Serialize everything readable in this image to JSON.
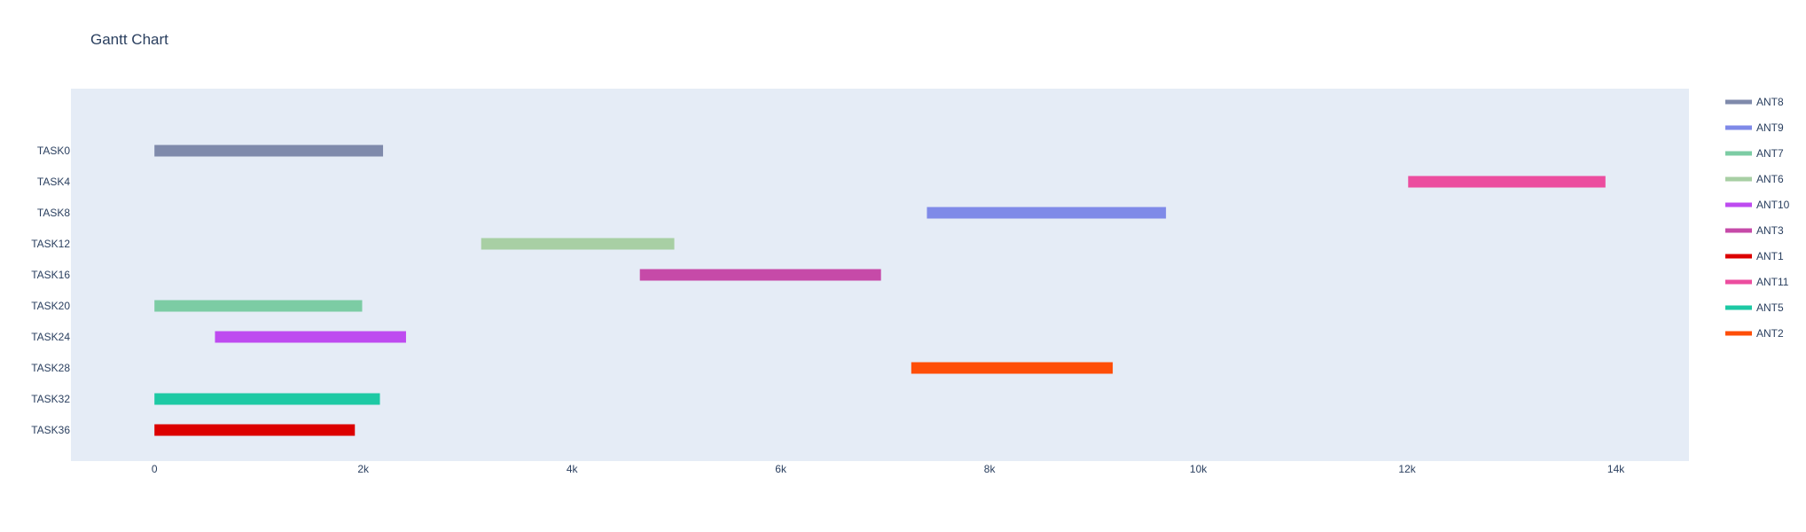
{
  "chart_data": {
    "type": "gantt",
    "title": "Gantt Chart",
    "xlabel": "",
    "ylabel": "",
    "xlim": [
      -800,
      14700
    ],
    "x_ticks": [
      0,
      2000,
      4000,
      6000,
      8000,
      10000,
      12000,
      14000
    ],
    "x_tick_labels": [
      "0",
      "2k",
      "4k",
      "6k",
      "8k",
      "10k",
      "12k",
      "14k"
    ],
    "categories": [
      "TASK0",
      "TASK4",
      "TASK8",
      "TASK12",
      "TASK16",
      "TASK20",
      "TASK24",
      "TASK28",
      "TASK32",
      "TASK36"
    ],
    "tasks": [
      {
        "task": "TASK0",
        "resource": "ANT8",
        "start": 0,
        "end": 2190
      },
      {
        "task": "TASK4",
        "resource": "ANT11",
        "start": 12010,
        "end": 13900
      },
      {
        "task": "TASK8",
        "resource": "ANT9",
        "start": 7400,
        "end": 9690
      },
      {
        "task": "TASK12",
        "resource": "ANT6",
        "start": 3130,
        "end": 4980
      },
      {
        "task": "TASK16",
        "resource": "ANT3",
        "start": 4650,
        "end": 6960
      },
      {
        "task": "TASK20",
        "resource": "ANT7",
        "start": 0,
        "end": 1990
      },
      {
        "task": "TASK24",
        "resource": "ANT10",
        "start": 580,
        "end": 2410
      },
      {
        "task": "TASK28",
        "resource": "ANT2",
        "start": 7250,
        "end": 9180
      },
      {
        "task": "TASK32",
        "resource": "ANT5",
        "start": 0,
        "end": 2160
      },
      {
        "task": "TASK36",
        "resource": "ANT1",
        "start": 0,
        "end": 1920
      }
    ],
    "legend": [
      {
        "name": "ANT8",
        "color": "#7f8aab"
      },
      {
        "name": "ANT9",
        "color": "#7f8ae8"
      },
      {
        "name": "ANT7",
        "color": "#7ccca4"
      },
      {
        "name": "ANT6",
        "color": "#a8cfa4"
      },
      {
        "name": "ANT10",
        "color": "#be4bf0"
      },
      {
        "name": "ANT3",
        "color": "#c64aa8"
      },
      {
        "name": "ANT1",
        "color": "#dc0000"
      },
      {
        "name": "ANT11",
        "color": "#ec4d9f"
      },
      {
        "name": "ANT5",
        "color": "#1dc9a4"
      },
      {
        "name": "ANT2",
        "color": "#fe4e08"
      }
    ],
    "legend_position": "right",
    "grid": false,
    "plot_background": "#e5ecf6"
  }
}
